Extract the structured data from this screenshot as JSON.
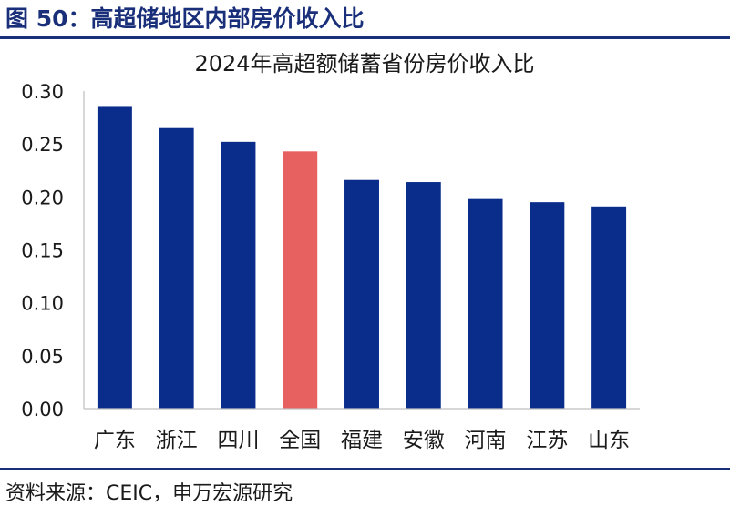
{
  "figure": {
    "title": "图 50：高超储地区内部房价收入比",
    "source": "资料来源：CEIC，申万宏源研究"
  },
  "colors": {
    "bar": "#0a2d8c",
    "highlight": "#e86161",
    "brand": "#1a2f7a"
  },
  "chart_data": {
    "type": "bar",
    "title": "2024年高超额储蓄省份房价收入比",
    "xlabel": "",
    "ylabel": "",
    "categories": [
      "广东",
      "浙江",
      "四川",
      "全国",
      "福建",
      "安徽",
      "河南",
      "江苏",
      "山东"
    ],
    "values": [
      0.285,
      0.265,
      0.252,
      0.243,
      0.216,
      0.214,
      0.198,
      0.195,
      0.191
    ],
    "highlight_category": "全国",
    "ylim": [
      0,
      0.3
    ],
    "yticks": [
      "0.00",
      "0.05",
      "0.10",
      "0.15",
      "0.20",
      "0.25",
      "0.30"
    ],
    "grid": false,
    "legend": "none"
  }
}
